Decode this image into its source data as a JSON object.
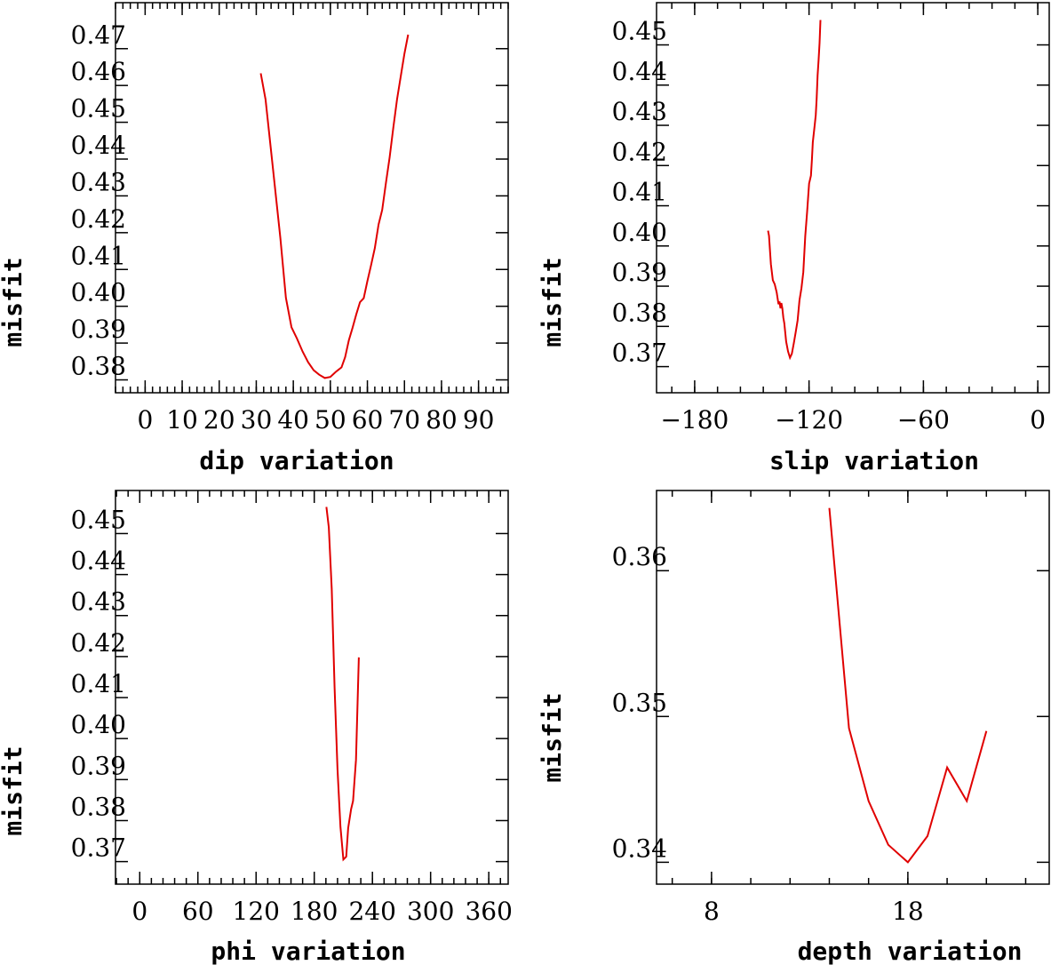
{
  "chart_data": [
    {
      "id": "dip",
      "type": "line",
      "title": "",
      "xlabel": "dip     variation",
      "ylabel": "misfit",
      "xlim": [
        -8,
        98
      ],
      "ylim": [
        0.3765,
        0.4825
      ],
      "xticks": [
        0,
        10,
        20,
        30,
        40,
        50,
        60,
        70,
        80,
        90
      ],
      "yticks": [
        0.38,
        0.39,
        0.4,
        0.41,
        0.42,
        0.43,
        0.44,
        0.45,
        0.46,
        0.47
      ],
      "xtick_labels": [
        "0",
        "10",
        "20",
        "30",
        "40",
        "50",
        "60",
        "70",
        "80",
        "90"
      ],
      "ytick_labels": [
        "0.38",
        "0.39",
        "0.40",
        "0.41",
        "0.42",
        "0.43",
        "0.44",
        "0.45",
        "0.46",
        "0.47"
      ],
      "color": "#e00000",
      "series": [
        {
          "name": "dip",
          "x": [
            31.2,
            32.5,
            34.5,
            36.5,
            38,
            39.5,
            41,
            42.5,
            44,
            45.5,
            47,
            48.5,
            50,
            51.5,
            53,
            54,
            55,
            56,
            57,
            58,
            59,
            60,
            61,
            62,
            63,
            64,
            65,
            66,
            67,
            68,
            69,
            70,
            71
          ],
          "y": [
            0.4633,
            0.4562,
            0.4375,
            0.4185,
            0.4023,
            0.3943,
            0.3912,
            0.3877,
            0.3848,
            0.3826,
            0.3814,
            0.3805,
            0.3808,
            0.3822,
            0.3834,
            0.3862,
            0.3908,
            0.3942,
            0.3978,
            0.4011,
            0.4022,
            0.4068,
            0.4112,
            0.4158,
            0.4222,
            0.4262,
            0.4335,
            0.4405,
            0.4485,
            0.4562,
            0.4625,
            0.4686,
            0.4738
          ]
        }
      ]
    },
    {
      "id": "slip",
      "type": "line",
      "title": "",
      "xlabel": "slip    variation",
      "ylabel": "misfit",
      "xlim": [
        -200,
        6
      ],
      "ylim": [
        0.3635,
        0.4605
      ],
      "xticks": [
        -180,
        -120,
        -60,
        0
      ],
      "yticks": [
        0.37,
        0.38,
        0.39,
        0.4,
        0.41,
        0.42,
        0.43,
        0.44,
        0.45
      ],
      "xtick_labels": [
        "−180",
        "−120",
        "−60",
        "0"
      ],
      "ytick_labels": [
        "0.37",
        "0.38",
        "0.39",
        "0.40",
        "0.41",
        "0.42",
        "0.43",
        "0.44",
        "0.45"
      ],
      "color": "#e00000",
      "series": [
        {
          "name": "slip",
          "x": [
            -141.5,
            -141,
            -140,
            -139,
            -138,
            -137,
            -136,
            -135.5,
            -135,
            -134.5,
            -134,
            -133.5,
            -133,
            -132,
            -131,
            -130,
            -129,
            -128,
            -127,
            -126,
            -125,
            -124,
            -123,
            -122,
            -121,
            -120,
            -119,
            -118.5,
            -118,
            -117,
            -116.5,
            -116,
            -115.5,
            -115,
            -114.5,
            -114
          ],
          "y": [
            0.4038,
            0.4025,
            0.3955,
            0.3915,
            0.3905,
            0.3885,
            0.3855,
            0.3862,
            0.3845,
            0.3858,
            0.3845,
            0.3822,
            0.3808,
            0.3762,
            0.3738,
            0.3722,
            0.3732,
            0.3758,
            0.3785,
            0.3815,
            0.3865,
            0.3895,
            0.3935,
            0.4025,
            0.4085,
            0.4155,
            0.4175,
            0.4215,
            0.4258,
            0.4302,
            0.4325,
            0.4365,
            0.4425,
            0.4462,
            0.4505,
            0.4562
          ]
        }
      ]
    },
    {
      "id": "phi",
      "type": "line",
      "title": "",
      "xlabel": "phi    variation",
      "ylabel": "misfit",
      "xlim": [
        -25,
        380
      ],
      "ylim": [
        0.3645,
        0.4605
      ],
      "xticks": [
        0,
        60,
        120,
        180,
        240,
        300,
        360
      ],
      "yticks": [
        0.37,
        0.38,
        0.39,
        0.4,
        0.41,
        0.42,
        0.43,
        0.44,
        0.45
      ],
      "xtick_labels": [
        "0",
        "60",
        "120",
        "180",
        "240",
        "300",
        "360"
      ],
      "ytick_labels": [
        "0.37",
        "0.38",
        "0.39",
        "0.40",
        "0.41",
        "0.42",
        "0.43",
        "0.44",
        "0.45"
      ],
      "color": "#e00000",
      "series": [
        {
          "name": "phi",
          "x": [
            192.5,
            195,
            198,
            201,
            204,
            207,
            210,
            213,
            215,
            218,
            220,
            223,
            226
          ],
          "y": [
            0.4565,
            0.4515,
            0.4365,
            0.4125,
            0.3925,
            0.3785,
            0.3705,
            0.3712,
            0.3782,
            0.3828,
            0.3848,
            0.3948,
            0.4198
          ]
        }
      ]
    },
    {
      "id": "depth",
      "type": "line",
      "title": "",
      "xlabel": "depth   variation",
      "ylabel": "misfit",
      "xlim": [
        5.2,
        25.2
      ],
      "ylim": [
        0.3385,
        0.3655
      ],
      "xticks": [
        8,
        18
      ],
      "yticks": [
        0.34,
        0.35,
        0.36
      ],
      "xtick_labels": [
        "8",
        "18"
      ],
      "ytick_labels": [
        "0.34",
        "0.35",
        "0.36"
      ],
      "color": "#e00000",
      "series": [
        {
          "name": "depth",
          "x": [
            14,
            15,
            16,
            17,
            18,
            19,
            20,
            21,
            22
          ],
          "y": [
            0.3643,
            0.3492,
            0.3442,
            0.3412,
            0.34,
            0.3418,
            0.3465,
            0.3442,
            0.349
          ]
        }
      ]
    }
  ]
}
